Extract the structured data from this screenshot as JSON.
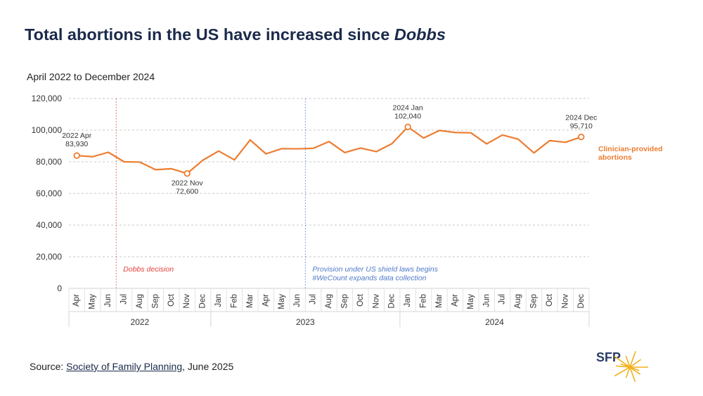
{
  "header": {
    "title_main": "Total abortions in the US have increased since ",
    "title_italic": "Dobbs",
    "subtitle": "April 2022 to December 2024"
  },
  "chart_data": {
    "type": "line",
    "title": "Total abortions in the US have increased since Dobbs",
    "subtitle": "April 2022 to December 2024",
    "xlabel": "",
    "ylabel": "",
    "ylim": [
      0,
      120000
    ],
    "yticks": [
      0,
      20000,
      40000,
      60000,
      80000,
      100000,
      120000
    ],
    "ytick_labels": [
      "0",
      "20,000",
      "40,000",
      "60,000",
      "80,000",
      "100,000",
      "120,000"
    ],
    "grid": true,
    "categories": [
      "Apr",
      "May",
      "Jun",
      "Jul",
      "Aug",
      "Sep",
      "Oct",
      "Nov",
      "Dec",
      "Jan",
      "Feb",
      "Mar",
      "Apr",
      "May",
      "Jun",
      "Jul",
      "Aug",
      "Sep",
      "Oct",
      "Nov",
      "Dec",
      "Jan",
      "Feb",
      "Mar",
      "Apr",
      "May",
      "Jun",
      "Jul",
      "Aug",
      "Sep",
      "Oct",
      "Nov",
      "Dec"
    ],
    "year_groups": [
      {
        "label": "2022",
        "start": 0,
        "end": 8
      },
      {
        "label": "2023",
        "start": 9,
        "end": 20
      },
      {
        "label": "2024",
        "start": 21,
        "end": 32
      }
    ],
    "series": [
      {
        "name": "Clinician-provided abortions",
        "legend_label": [
          "Clinician-provided",
          "abortions"
        ],
        "color": "#ed7d31",
        "values": [
          83930,
          83200,
          86000,
          80000,
          79800,
          75000,
          75600,
          72600,
          81000,
          86800,
          81200,
          93800,
          85000,
          88300,
          88200,
          88500,
          92800,
          85800,
          88700,
          86400,
          91500,
          102040,
          95000,
          99800,
          98500,
          98300,
          91300,
          96900,
          94300,
          85600,
          93400,
          92300,
          95710
        ]
      }
    ],
    "annotations": [
      {
        "index": 0,
        "lines": [
          "2022 Apr",
          "83,930"
        ]
      },
      {
        "index": 7,
        "lines": [
          "2022 Nov",
          "72,600"
        ]
      },
      {
        "index": 21,
        "lines": [
          "2024 Jan",
          "102,040"
        ]
      },
      {
        "index": 32,
        "lines": [
          "2024 Dec",
          "95,710"
        ]
      }
    ],
    "events": [
      {
        "after_index": 2,
        "lines": [
          "Dobbs decision"
        ],
        "color": "#e0413a"
      },
      {
        "after_index": 14,
        "lines": [
          "Provision under US shield laws begins",
          "#WeCount expands data collection"
        ],
        "color": "#4f7ac7"
      }
    ]
  },
  "footer": {
    "source_prefix": "Source: ",
    "source_link": "Society of Family Planning",
    "source_suffix": ", June 2025"
  },
  "logo": {
    "text": "SFP",
    "star_color": "#f2b11b"
  }
}
